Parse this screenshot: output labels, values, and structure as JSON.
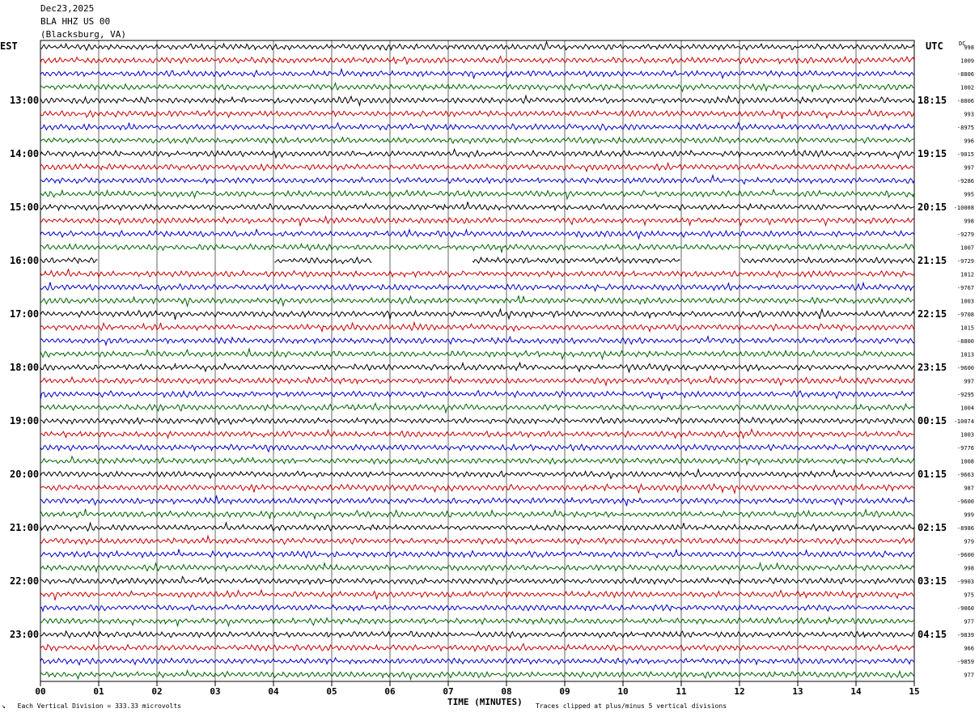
{
  "header": {
    "date": "Dec23,2025",
    "station": "BLA HHZ US 00",
    "location": "(Blacksburg, VA)"
  },
  "left_zone": "EST",
  "right_zone": "UTC",
  "dc_header": "DC",
  "footer": {
    "scale_note": "Each Vertical Division =  333.33 microvolts",
    "x_label": "TIME (MINUTES)",
    "clip_note": "Traces clipped at plus/minus 5 vertical divisions"
  },
  "colors": {
    "cycle": [
      "#000000",
      "#cc0000",
      "#0000cc",
      "#006600"
    ],
    "grid": "#000000"
  },
  "chart_data": {
    "type": "line",
    "x_ticks": [
      "00",
      "01",
      "02",
      "03",
      "04",
      "05",
      "06",
      "07",
      "08",
      "09",
      "10",
      "11",
      "12",
      "13",
      "14",
      "15"
    ],
    "xlim": [
      0,
      15
    ],
    "traces_per_hour": 4,
    "left_hour_labels": [
      "13:00",
      "14:00",
      "15:00",
      "16:00",
      "17:00",
      "18:00",
      "19:00",
      "20:00",
      "21:00",
      "22:00",
      "23:00"
    ],
    "right_hour_labels": [
      "18:15",
      "19:15",
      "20:15",
      "21:15",
      "22:15",
      "23:15",
      "00:15",
      "01:15",
      "02:15",
      "03:15",
      "04:15"
    ],
    "dc_offsets": [
      "998",
      "1009",
      "-8806",
      "1002",
      "-8806",
      "993",
      "-8975",
      "996",
      "-9015",
      "997",
      "-9286",
      "995",
      "-10008",
      "998",
      "-9279",
      "1007",
      "-9729",
      "1012",
      "-9767",
      "1003",
      "-9708",
      "1015",
      "-8800",
      "1013",
      "-9600",
      "997",
      "-9295",
      "1004",
      "-10074",
      "1003",
      "-9776",
      "1008",
      "-9663",
      "987",
      "-9600",
      "999",
      "-8986",
      "979",
      "-9600",
      "998",
      "-9903",
      "975",
      "-9060",
      "977",
      "-9839",
      "966",
      "-9859",
      "977"
    ],
    "gaps": [
      {
        "trace": 16,
        "from_min": 1.0,
        "to_min": 4.0
      },
      {
        "trace": 16,
        "from_min": 5.7,
        "to_min": 6.0
      },
      {
        "trace": 16,
        "from_min": 6.0,
        "to_min": 7.4
      },
      {
        "trace": 16,
        "from_min": 11.0,
        "to_min": 12.0
      }
    ]
  }
}
